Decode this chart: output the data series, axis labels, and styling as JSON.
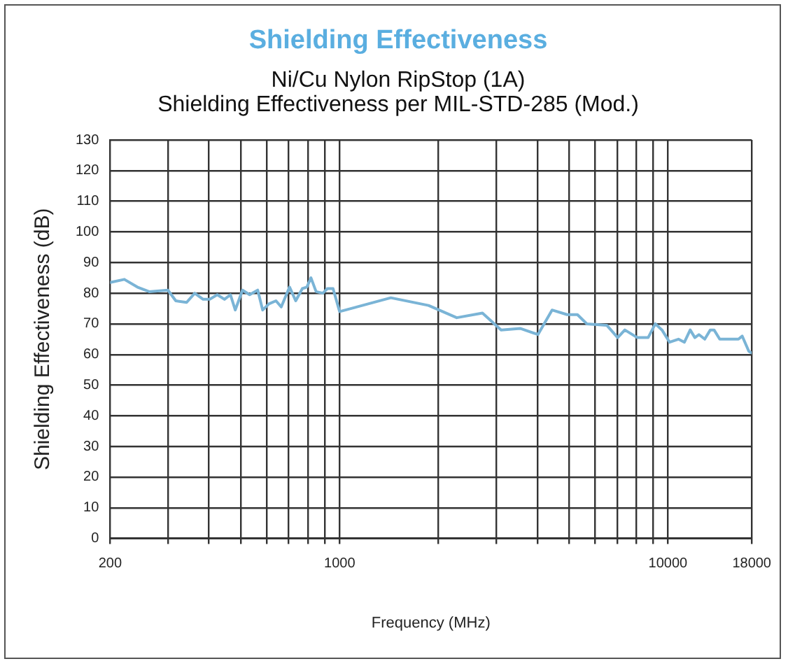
{
  "chart_data": {
    "type": "line",
    "title": "Shielding Effectiveness",
    "subtitle": "Ni/Cu Nylon RipStop (1A)\nShielding Effectiveness per MIL-STD-285 (Mod.)",
    "xlabel": "Frequency (MHz)",
    "ylabel": "Shielding Effectiveness (dB)",
    "log": "x",
    "grid": true,
    "legend": false,
    "marker": "none",
    "line_style": "solid",
    "xlim": [
      200,
      18000
    ],
    "ylim": [
      0,
      130
    ],
    "xticks": [
      200,
      {
        "value": 300,
        "label": null
      },
      {
        "value": 400,
        "label": null
      },
      {
        "value": 500,
        "label": null
      },
      {
        "value": 600,
        "label": null
      },
      {
        "value": 700,
        "label": null
      },
      {
        "value": 800,
        "label": null
      },
      {
        "value": 900,
        "label": null
      },
      1000,
      {
        "value": 2000,
        "label": null
      },
      {
        "value": 3000,
        "label": null
      },
      {
        "value": 4000,
        "label": null
      },
      {
        "value": 5000,
        "label": null
      },
      {
        "value": 6000,
        "label": null
      },
      {
        "value": 7000,
        "label": null
      },
      {
        "value": 8000,
        "label": null
      },
      {
        "value": 9000,
        "label": null
      },
      10000,
      18000
    ],
    "yticks": [
      0,
      10,
      20,
      30,
      40,
      50,
      60,
      70,
      80,
      90,
      100,
      110,
      120,
      130
    ],
    "x": [
      200,
      221,
      242,
      263,
      300,
      317,
      342,
      362,
      384,
      402,
      424,
      446,
      465,
      481,
      506,
      532,
      563,
      583,
      609,
      640,
      664,
      704,
      735,
      770,
      795,
      818,
      848,
      889,
      918,
      955,
      1000,
      1432,
      1866,
      2274,
      2723,
      3105,
      3546,
      4019,
      4437,
      4932,
      5301,
      5662,
      6518,
      7030,
      7392,
      8072,
      8704,
      9154,
      9591,
      10118,
      10766,
      11224,
      11690,
      12080,
      12430,
      12947,
      13460,
      13820,
      14380,
      15470,
      16400,
      16840,
      17640,
      18000
    ],
    "series": [
      {
        "color": "#7ab4d6",
        "values": [
          83.5,
          84.5,
          82,
          80.5,
          81,
          77.5,
          77,
          80,
          78,
          78,
          79.5,
          78,
          79.5,
          74.5,
          81,
          79.5,
          81,
          74.5,
          76.5,
          77.5,
          75.5,
          82,
          77.5,
          81.5,
          82,
          85,
          80.5,
          80,
          81.5,
          81.5,
          74,
          78.5,
          76,
          72,
          73.5,
          68,
          68.5,
          66.5,
          74.5,
          73,
          73,
          70,
          69.5,
          65.5,
          68,
          65.5,
          65.5,
          70,
          68,
          64,
          65,
          64,
          68,
          65.5,
          66.5,
          65,
          68,
          68,
          65,
          65,
          65,
          66,
          61,
          60.5
        ]
      }
    ]
  }
}
